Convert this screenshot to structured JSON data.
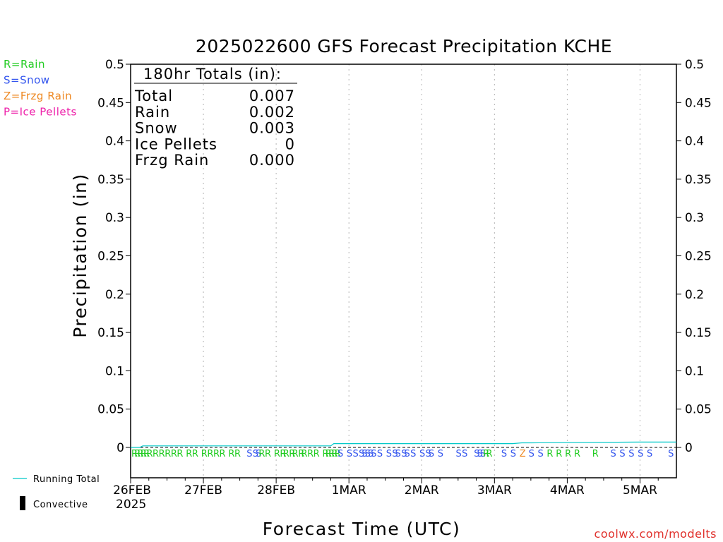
{
  "chart_data": {
    "type": "line",
    "title": "2025022600 GFS Forecast Precipitation KCHE",
    "xlabel": "Forecast Time (UTC)",
    "ylabel": "Precipitation (in)",
    "ylim": [
      0,
      0.5
    ],
    "yticks": [
      "0",
      "0.05",
      "0.1",
      "0.15",
      "0.2",
      "0.25",
      "0.3",
      "0.35",
      "0.4",
      "0.45",
      "0.5"
    ],
    "xlim_hours": [
      0,
      180
    ],
    "xticks": [
      {
        "hour": 0,
        "label": "26FEB"
      },
      {
        "hour": 24,
        "label": "27FEB"
      },
      {
        "hour": 48,
        "label": "28FEB"
      },
      {
        "hour": 72,
        "label": "1MAR"
      },
      {
        "hour": 96,
        "label": "2MAR"
      },
      {
        "hour": 120,
        "label": "3MAR"
      },
      {
        "hour": 144,
        "label": "4MAR"
      },
      {
        "hour": 168,
        "label": "5MAR"
      }
    ],
    "year_label": "2025",
    "grid": "vertical-dotted",
    "series": [
      {
        "name": "Running Total",
        "color": "#00c8c8",
        "x": [
          0,
          3,
          4,
          66,
          67,
          114,
          126,
          129,
          132,
          168,
          180
        ],
        "y": [
          0,
          0,
          0.002,
          0.002,
          0.005,
          0.005,
          0.005,
          0.006,
          0.006,
          0.007,
          0.007
        ]
      }
    ],
    "legend": {
      "types": [
        {
          "text": "R=Rain",
          "color": "#22cc22"
        },
        {
          "text": "S=Snow",
          "color": "#3355ee"
        },
        {
          "text": "Z=Frzg Rain",
          "color": "#ee8822"
        },
        {
          "text": "P=Ice Pellets",
          "color": "#ee22aa"
        }
      ],
      "running_total_label": "Running Total",
      "convective_label": "Convective"
    },
    "totals": {
      "header": "180hr Totals (in):",
      "rows": [
        {
          "label": "Total",
          "value": "0.007"
        },
        {
          "label": "Rain",
          "value": "0.002"
        },
        {
          "label": "Snow",
          "value": "0.003"
        },
        {
          "label": "Ice Pellets",
          "value": "0"
        },
        {
          "label": "Frzg Rain",
          "value": "0.000"
        }
      ]
    },
    "precip_types": [
      {
        "hour": 0,
        "type": "R"
      },
      {
        "hour": 1,
        "type": "R"
      },
      {
        "hour": 2,
        "type": "R"
      },
      {
        "hour": 3,
        "type": "R"
      },
      {
        "hour": 4,
        "type": "R"
      },
      {
        "hour": 5,
        "type": "R"
      },
      {
        "hour": 7,
        "type": "R"
      },
      {
        "hour": 9,
        "type": "R"
      },
      {
        "hour": 11,
        "type": "R"
      },
      {
        "hour": 13,
        "type": "R"
      },
      {
        "hour": 15,
        "type": "R"
      },
      {
        "hour": 18,
        "type": "R"
      },
      {
        "hour": 20,
        "type": "R"
      },
      {
        "hour": 23,
        "type": "R"
      },
      {
        "hour": 25,
        "type": "R"
      },
      {
        "hour": 27,
        "type": "R"
      },
      {
        "hour": 29,
        "type": "R"
      },
      {
        "hour": 32,
        "type": "R"
      },
      {
        "hour": 34,
        "type": "R"
      },
      {
        "hour": 38,
        "type": "S"
      },
      {
        "hour": 40,
        "type": "S"
      },
      {
        "hour": 41,
        "type": "S"
      },
      {
        "hour": 42,
        "type": "R"
      },
      {
        "hour": 44,
        "type": "R"
      },
      {
        "hour": 47,
        "type": "R"
      },
      {
        "hour": 49,
        "type": "R"
      },
      {
        "hour": 50,
        "type": "R"
      },
      {
        "hour": 52,
        "type": "R"
      },
      {
        "hour": 53,
        "type": "R"
      },
      {
        "hour": 55,
        "type": "R"
      },
      {
        "hour": 56,
        "type": "R"
      },
      {
        "hour": 58,
        "type": "R"
      },
      {
        "hour": 60,
        "type": "R"
      },
      {
        "hour": 63,
        "type": "R"
      },
      {
        "hour": 64,
        "type": "R"
      },
      {
        "hour": 65,
        "type": "R"
      },
      {
        "hour": 66,
        "type": "R"
      },
      {
        "hour": 67,
        "type": "R"
      },
      {
        "hour": 68,
        "type": "S"
      },
      {
        "hour": 71,
        "type": "S"
      },
      {
        "hour": 73,
        "type": "S"
      },
      {
        "hour": 75,
        "type": "S"
      },
      {
        "hour": 76,
        "type": "S"
      },
      {
        "hour": 77,
        "type": "S"
      },
      {
        "hour": 78,
        "type": "S"
      },
      {
        "hour": 79,
        "type": "S"
      },
      {
        "hour": 81,
        "type": "S"
      },
      {
        "hour": 84,
        "type": "S"
      },
      {
        "hour": 86,
        "type": "S"
      },
      {
        "hour": 87,
        "type": "S"
      },
      {
        "hour": 89,
        "type": "S"
      },
      {
        "hour": 90,
        "type": "S"
      },
      {
        "hour": 92,
        "type": "S"
      },
      {
        "hour": 95,
        "type": "S"
      },
      {
        "hour": 97,
        "type": "S"
      },
      {
        "hour": 98,
        "type": "S"
      },
      {
        "hour": 101,
        "type": "S"
      },
      {
        "hour": 107,
        "type": "S"
      },
      {
        "hour": 109,
        "type": "S"
      },
      {
        "hour": 113,
        "type": "S"
      },
      {
        "hour": 114,
        "type": "S"
      },
      {
        "hour": 115,
        "type": "S"
      },
      {
        "hour": 116,
        "type": "R"
      },
      {
        "hour": 117,
        "type": "R"
      },
      {
        "hour": 122,
        "type": "S"
      },
      {
        "hour": 125,
        "type": "S"
      },
      {
        "hour": 128,
        "type": "Z"
      },
      {
        "hour": 131,
        "type": "S"
      },
      {
        "hour": 134,
        "type": "S"
      },
      {
        "hour": 137,
        "type": "R"
      },
      {
        "hour": 140,
        "type": "R"
      },
      {
        "hour": 143,
        "type": "R"
      },
      {
        "hour": 146,
        "type": "R"
      },
      {
        "hour": 152,
        "type": "R"
      },
      {
        "hour": 158,
        "type": "S"
      },
      {
        "hour": 161,
        "type": "S"
      },
      {
        "hour": 164,
        "type": "S"
      },
      {
        "hour": 167,
        "type": "S"
      },
      {
        "hour": 170,
        "type": "S"
      },
      {
        "hour": 177,
        "type": "S"
      }
    ],
    "type_colors": {
      "R": "#22cc22",
      "S": "#3355ee",
      "Z": "#ee8822",
      "P": "#ee22aa"
    }
  },
  "watermark": "coolwx.com/modelts"
}
